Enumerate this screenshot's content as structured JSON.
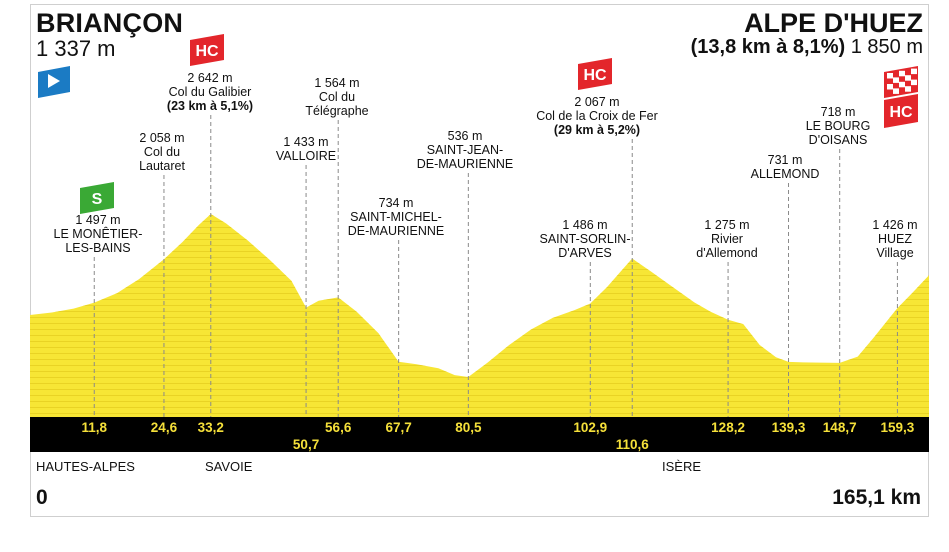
{
  "start": {
    "name": "BRIANÇON",
    "altitude": "1 337 m"
  },
  "finish": {
    "name": "ALPE D'HUEZ",
    "climb": "(13,8 km à 8,1%)",
    "altitude": "1 850 m"
  },
  "distance_start": "0",
  "distance_end": "165,1 km",
  "regions": [
    "HAUTES-ALPES",
    "SAVOIE",
    "ISÈRE"
  ],
  "category_badge": "HC",
  "sprint_badge": "S",
  "colors": {
    "profile": "#f7e635",
    "profile_line": "#e3cc1c",
    "band": "#000000",
    "km_text": "#f5e03a",
    "hc": "#e3262b",
    "sprint": "#3aa935",
    "start_flag": "#1b7bc4"
  },
  "chart_data": {
    "type": "area",
    "title": "",
    "xlabel": "",
    "ylabel": "",
    "x_unit": "km",
    "y_unit": "m",
    "xlim": [
      0,
      165.1
    ],
    "profile": [
      [
        0,
        1337
      ],
      [
        4,
        1370
      ],
      [
        8,
        1420
      ],
      [
        11.8,
        1497
      ],
      [
        16,
        1620
      ],
      [
        20,
        1800
      ],
      [
        24.6,
        2058
      ],
      [
        28,
        2280
      ],
      [
        31,
        2500
      ],
      [
        33.2,
        2642
      ],
      [
        36,
        2520
      ],
      [
        40,
        2300
      ],
      [
        44,
        2050
      ],
      [
        48,
        1780
      ],
      [
        50.7,
        1433
      ],
      [
        53,
        1520
      ],
      [
        56.6,
        1564
      ],
      [
        60,
        1380
      ],
      [
        64,
        1100
      ],
      [
        67.7,
        734
      ],
      [
        71,
        700
      ],
      [
        75,
        650
      ],
      [
        78,
        560
      ],
      [
        80.5,
        536
      ],
      [
        84,
        720
      ],
      [
        88,
        950
      ],
      [
        92,
        1150
      ],
      [
        96,
        1300
      ],
      [
        100,
        1400
      ],
      [
        102.9,
        1486
      ],
      [
        106,
        1700
      ],
      [
        108.5,
        1900
      ],
      [
        110.6,
        2067
      ],
      [
        114,
        1900
      ],
      [
        118,
        1700
      ],
      [
        122,
        1500
      ],
      [
        125,
        1380
      ],
      [
        128.2,
        1275
      ],
      [
        131,
        1220
      ],
      [
        134,
        950
      ],
      [
        137,
        790
      ],
      [
        139.3,
        731
      ],
      [
        142,
        725
      ],
      [
        145,
        722
      ],
      [
        148.7,
        718
      ],
      [
        152,
        800
      ],
      [
        155,
        1050
      ],
      [
        159.3,
        1426
      ],
      [
        162,
        1620
      ],
      [
        165.1,
        1850
      ]
    ],
    "markers": [
      {
        "km": 11.8,
        "km_label": "11,8",
        "altitude": "1 497 m",
        "name": "LE MONÊTIER-LES-BAINS",
        "name_lines": [
          "LE MONÊTIER-",
          "LES-BAINS"
        ],
        "climb": "",
        "badge": "S"
      },
      {
        "km": 24.6,
        "km_label": "24,6",
        "altitude": "2 058 m",
        "name": "Col du Lautaret",
        "name_lines": [
          "Col du",
          "Lautaret"
        ],
        "climb": "",
        "badge": ""
      },
      {
        "km": 33.2,
        "km_label": "33,2",
        "altitude": "2 642 m",
        "name": "Col du Galibier",
        "name_lines": [
          "Col du Galibier"
        ],
        "climb": "(23 km à 5,1%)",
        "badge": "HC"
      },
      {
        "km": 50.7,
        "km_label": "50,7",
        "altitude": "1 433 m",
        "name": "VALLOIRE",
        "name_lines": [
          "VALLOIRE"
        ],
        "climb": "",
        "badge": ""
      },
      {
        "km": 56.6,
        "km_label": "56,6",
        "altitude": "1 564 m",
        "name": "Col du Télégraphe",
        "name_lines": [
          "Col du",
          "Télégraphe"
        ],
        "climb": "",
        "badge": ""
      },
      {
        "km": 67.7,
        "km_label": "67,7",
        "altitude": "734 m",
        "name": "SAINT-MICHEL-DE-MAURIENNE",
        "name_lines": [
          "SAINT-MICHEL-",
          "DE-MAURIENNE"
        ],
        "climb": "",
        "badge": ""
      },
      {
        "km": 80.5,
        "km_label": "80,5",
        "altitude": "536 m",
        "name": "SAINT-JEAN-DE-MAURIENNE",
        "name_lines": [
          "SAINT-JEAN-",
          "DE-MAURIENNE"
        ],
        "climb": "",
        "badge": ""
      },
      {
        "km": 102.9,
        "km_label": "102,9",
        "altitude": "1 486 m",
        "name": "SAINT-SORLIN-D'ARVES",
        "name_lines": [
          "SAINT-SORLIN-",
          "D'ARVES"
        ],
        "climb": "",
        "badge": ""
      },
      {
        "km": 110.6,
        "km_label": "110,6",
        "altitude": "2 067 m",
        "name": "Col de la Croix de Fer",
        "name_lines": [
          "Col de la Croix de Fer"
        ],
        "climb": "(29 km à 5,2%)",
        "badge": "HC"
      },
      {
        "km": 128.2,
        "km_label": "128,2",
        "altitude": "1 275 m",
        "name": "Rivier d'Allemond",
        "name_lines": [
          "Rivier",
          "d'Allemond"
        ],
        "climb": "",
        "badge": ""
      },
      {
        "km": 139.3,
        "km_label": "139,3",
        "altitude": "731 m",
        "name": "ALLEMOND",
        "name_lines": [
          "ALLEMOND"
        ],
        "climb": "",
        "badge": ""
      },
      {
        "km": 148.7,
        "km_label": "148,7",
        "altitude": "718 m",
        "name": "LE BOURG D'OISANS",
        "name_lines": [
          "LE BOURG",
          "D'OISANS"
        ],
        "climb": "",
        "badge": ""
      },
      {
        "km": 159.3,
        "km_label": "159,3",
        "altitude": "1 426 m",
        "name": "HUEZ Village",
        "name_lines": [
          "HUEZ",
          "Village"
        ],
        "climb": "",
        "badge": ""
      }
    ]
  }
}
